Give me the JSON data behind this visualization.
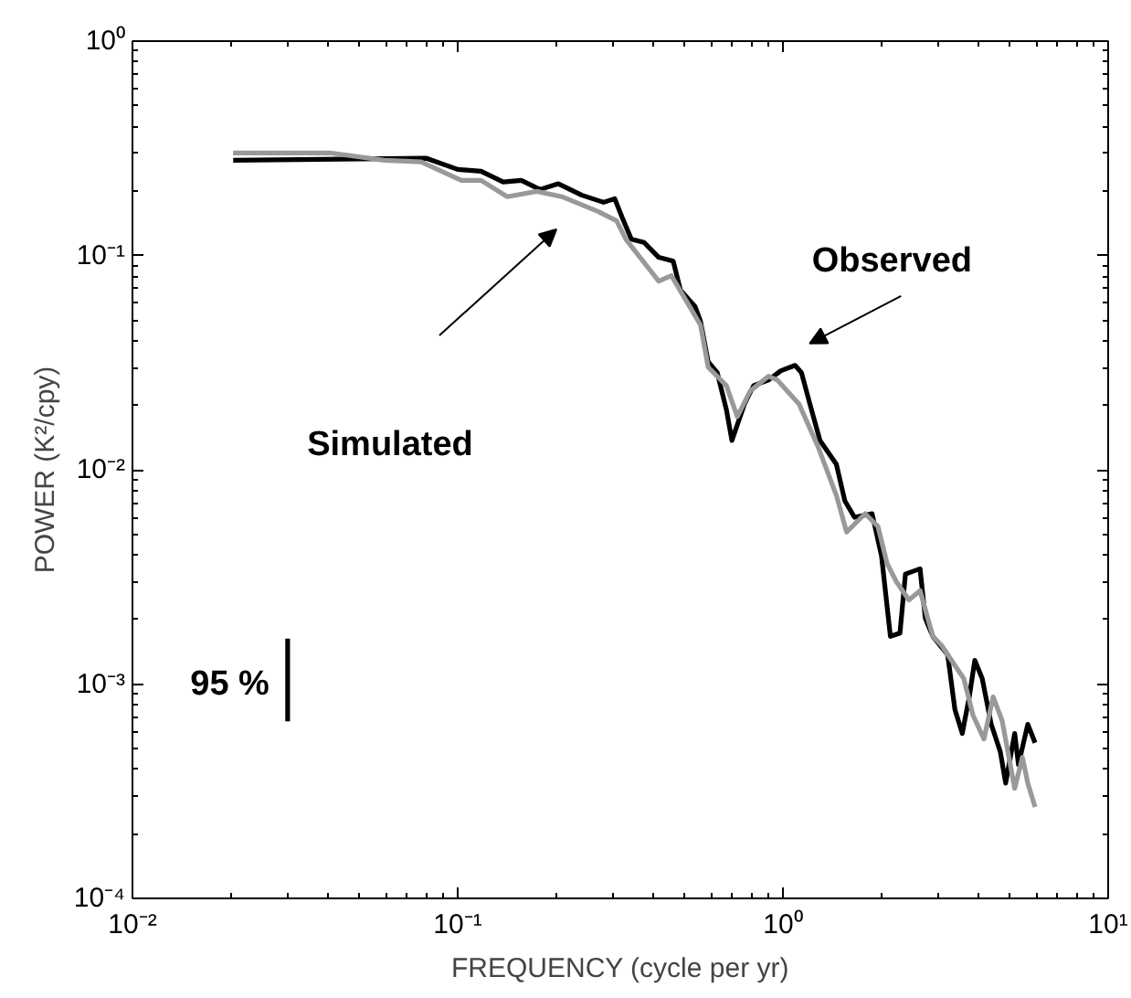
{
  "chart_data": {
    "type": "line",
    "xlabel": "FREQUENCY (cycle per yr)",
    "ylabel": "POWER (K²/cpy)",
    "log": "xy",
    "grid": false,
    "line_style": "solid",
    "marker": "none",
    "xlim": [
      0.01,
      10
    ],
    "ylim": [
      0.0001,
      1
    ],
    "xticks": [
      {
        "value": 0.01,
        "label": "10⁻²"
      },
      {
        "value": 0.1,
        "label": "10⁻¹"
      },
      {
        "value": 1,
        "label": "10⁰"
      },
      {
        "value": 10,
        "label": "10¹"
      }
    ],
    "yticks": [
      {
        "value": 0.0001,
        "label": "10⁻⁴"
      },
      {
        "value": 0.001,
        "label": "10⁻³"
      },
      {
        "value": 0.01,
        "label": "10⁻²"
      },
      {
        "value": 0.1,
        "label": "10⁻¹"
      },
      {
        "value": 1,
        "label": "10⁰"
      }
    ],
    "series": [
      {
        "color": "#000000",
        "x": [
          0.0204,
          0.0802,
          0.1,
          0.118,
          0.138,
          0.157,
          0.179,
          0.204,
          0.241,
          0.281,
          0.304,
          0.32,
          0.342,
          0.374,
          0.415,
          0.46,
          0.484,
          0.537,
          0.558,
          0.589,
          0.628,
          0.67,
          0.697,
          0.762,
          0.813,
          0.902,
          0.986,
          1.09,
          1.14,
          1.21,
          1.3,
          1.46,
          1.55,
          1.66,
          1.88,
          2.01,
          2.14,
          2.29,
          2.38,
          2.64,
          2.74,
          2.89,
          3.21,
          3.38,
          3.56,
          3.74,
          3.89,
          4.1,
          4.37,
          4.66,
          4.84,
          5.16,
          5.3,
          5.66,
          5.96
        ],
        "values": [
          0.278,
          0.284,
          0.252,
          0.247,
          0.22,
          0.224,
          0.203,
          0.216,
          0.191,
          0.177,
          0.184,
          0.151,
          0.119,
          0.115,
          0.098,
          0.094,
          0.0689,
          0.0577,
          0.0492,
          0.0319,
          0.0284,
          0.0191,
          0.0137,
          0.0203,
          0.0247,
          0.0262,
          0.029,
          0.0307,
          0.0284,
          0.0203,
          0.0137,
          0.0106,
          0.00716,
          0.006,
          0.00624,
          0.00396,
          0.00167,
          0.00173,
          0.00326,
          0.00345,
          0.00203,
          0.00167,
          0.00137,
          0.000759,
          0.000588,
          0.000871,
          0.00129,
          0.00106,
          0.000649,
          0.000483,
          0.000345,
          0.000588,
          0.000421,
          0.000649,
          0.000532
        ]
      },
      {
        "color": "#999999",
        "x": [
          0.0204,
          0.0404,
          0.0596,
          0.0772,
          0.1026,
          0.118,
          0.142,
          0.175,
          0.209,
          0.271,
          0.308,
          0.329,
          0.415,
          0.454,
          0.558,
          0.589,
          0.67,
          0.724,
          0.793,
          0.902,
          0.962,
          1.12,
          1.28,
          1.46,
          1.57,
          1.79,
          1.96,
          2.09,
          2.23,
          2.44,
          2.64,
          2.89,
          3.08,
          3.38,
          3.6,
          3.84,
          4.15,
          4.43,
          4.72,
          5.16,
          5.45,
          5.66,
          5.96
        ],
        "values": [
          0.301,
          0.301,
          0.278,
          0.273,
          0.224,
          0.224,
          0.188,
          0.199,
          0.188,
          0.16,
          0.145,
          0.119,
          0.0759,
          0.0805,
          0.0473,
          0.0301,
          0.0247,
          0.0177,
          0.0233,
          0.0273,
          0.0262,
          0.0203,
          0.0129,
          0.00759,
          0.00512,
          0.00624,
          0.00543,
          0.00366,
          0.00301,
          0.00247,
          0.00273,
          0.00167,
          0.00151,
          0.00122,
          0.00106,
          0.000716,
          0.000554,
          0.000871,
          0.000675,
          0.000326,
          0.000455,
          0.000345,
          0.000267
        ]
      },
      {
        "color": "#000000",
        "x": [
          0.03,
          0.03
        ],
        "values": [
          0.00163,
          0.00067
        ]
      }
    ],
    "annotations": [
      "Simulated",
      {
        "text": "Observed",
        "x": 1.09,
        "y": 0.0307
      },
      {
        "text": "95 %",
        "x": 0.03,
        "y": 0.001
      }
    ]
  }
}
